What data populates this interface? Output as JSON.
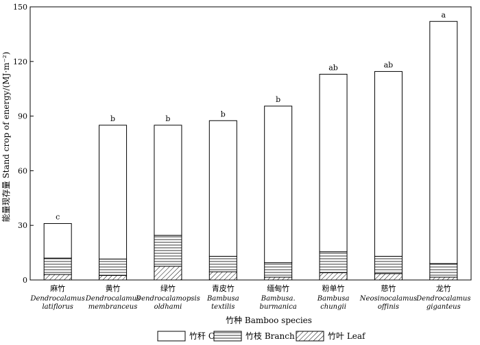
{
  "chart_data": {
    "type": "bar",
    "stacked": true,
    "ylabel": "能量现存量 Stand crop of energy/(MJ·m⁻²)",
    "xlabel": "竹种 Bamboo species",
    "ylim": [
      0,
      150
    ],
    "yticks": [
      0,
      30,
      60,
      90,
      120,
      150
    ],
    "categories": [
      {
        "cn": "麻竹",
        "latin": [
          "Dendrocalamus",
          "latiflorus"
        ]
      },
      {
        "cn": "黄竹",
        "latin": [
          "Dendrocalamus",
          "membranceus"
        ]
      },
      {
        "cn": "绿竹",
        "latin": [
          "Dendrocalamopsis",
          "oldhami"
        ]
      },
      {
        "cn": "青皮竹",
        "latin": [
          "Bambusa",
          "textilis"
        ]
      },
      {
        "cn": "缅甸竹",
        "latin": [
          "Bambusa.",
          "burmanica"
        ]
      },
      {
        "cn": "粉单竹",
        "latin": [
          "Bambusa",
          "chungii"
        ]
      },
      {
        "cn": "慈竹",
        "latin": [
          "Neosinocalamus",
          "offinis"
        ]
      },
      {
        "cn": "龙竹",
        "latin": [
          "Dendrocalamus",
          "giganteus"
        ]
      }
    ],
    "series": [
      {
        "name": "竹叶 Leaf",
        "pattern": "diagonal",
        "values": [
          3,
          2.5,
          7.5,
          4.5,
          1.5,
          4,
          3.5,
          1.5
        ]
      },
      {
        "name": "竹枝 Branch",
        "pattern": "horizontal",
        "values": [
          9,
          9,
          17,
          8.5,
          8,
          11.5,
          9.5,
          7.5
        ]
      },
      {
        "name": "竹秆 Clum",
        "pattern": "blank",
        "values": [
          19,
          73.5,
          60.5,
          74.5,
          86,
          97.5,
          101.5,
          133
        ]
      }
    ],
    "significance": [
      "c",
      "b",
      "b",
      "b",
      "b",
      "ab",
      "ab",
      "a"
    ],
    "legend": [
      {
        "name": "竹秆 Clum",
        "pattern": "blank"
      },
      {
        "name": "竹枝 Branch",
        "pattern": "horizontal"
      },
      {
        "name": "竹叶 Leaf",
        "pattern": "diagonal"
      }
    ],
    "legend_position": "bottom",
    "grid": false
  }
}
